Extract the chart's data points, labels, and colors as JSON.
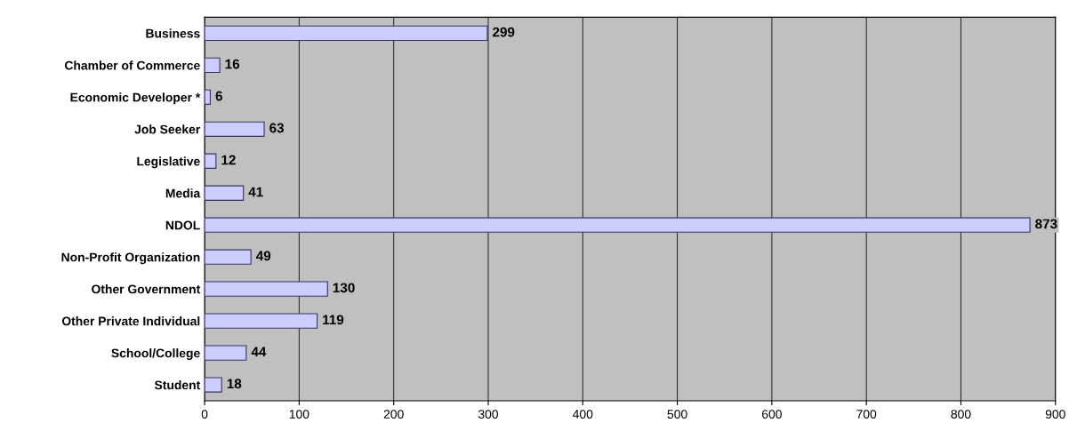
{
  "chart_data": {
    "type": "bar",
    "orientation": "horizontal",
    "categories": [
      "Business",
      "Chamber of Commerce",
      "Economic Developer *",
      "Job Seeker",
      "Legislative",
      "Media",
      "NDOL",
      "Non-Profit Organization",
      "Other Government",
      "Other Private Individual",
      "School/College",
      "Student"
    ],
    "values": [
      299,
      16,
      6,
      63,
      12,
      41,
      873,
      49,
      130,
      119,
      44,
      18
    ],
    "color": "#ccccff",
    "xlim": [
      0,
      900
    ],
    "xticks": [
      0,
      100,
      200,
      300,
      400,
      500,
      600,
      700,
      800,
      900
    ],
    "grid": "x",
    "data_labels": true
  }
}
